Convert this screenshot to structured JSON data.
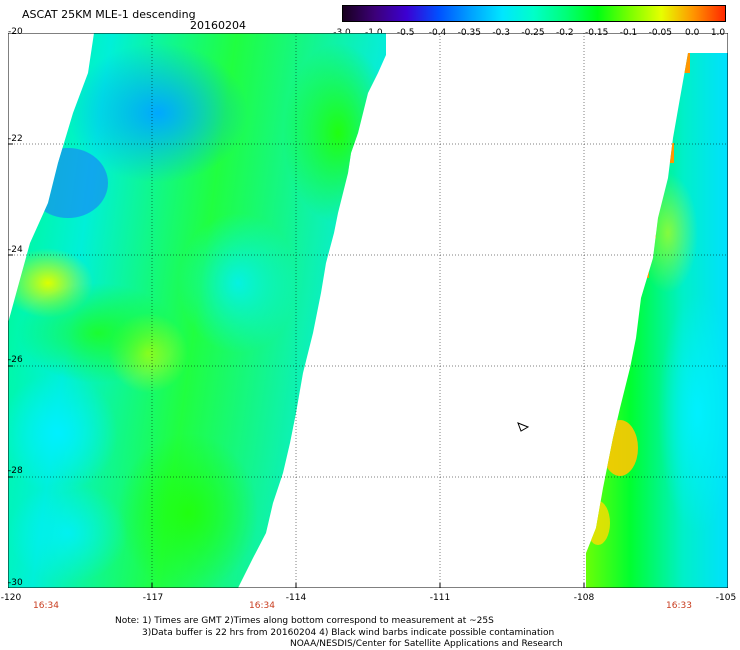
{
  "header": {
    "title": "ASCAT 25KM MLE-1 descending",
    "date": "20160204"
  },
  "colorbar": {
    "labels": [
      "-3.0",
      "-1.0",
      "-0.5",
      "-0.4",
      "-0.35",
      "-0.3",
      "-0.25",
      "-0.2",
      "-0.15",
      "-0.1",
      "-0.05",
      "0.0",
      "1.0"
    ],
    "colors": [
      "#18001e",
      "#3c0078",
      "#3c00d2",
      "#0050ff",
      "#00a0ff",
      "#00e6ff",
      "#00ffc8",
      "#00ff78",
      "#00ff14",
      "#78ff00",
      "#e6ff00",
      "#ff9600",
      "#ff2800"
    ]
  },
  "map": {
    "x_axis": {
      "ticks": [
        "-120",
        "-117",
        "-114",
        "-111",
        "-108",
        "-105"
      ]
    },
    "y_axis": {
      "ticks": [
        "-20",
        "-22",
        "-24",
        "-26",
        "-28",
        "-30"
      ]
    },
    "pass_times": [
      "16:34",
      "16:34",
      "16:33"
    ],
    "gridlines": true
  },
  "notes": {
    "line1": "Note: 1) Times are GMT 2)Times along bottom correspond to measurement at ~25S",
    "line2": "3)Data buffer is 22 hrs from 20160204 4) Black wind barbs indicate possible contamination",
    "line3": "NOAA/NESDIS/Center for Satellite Applications and Research"
  }
}
